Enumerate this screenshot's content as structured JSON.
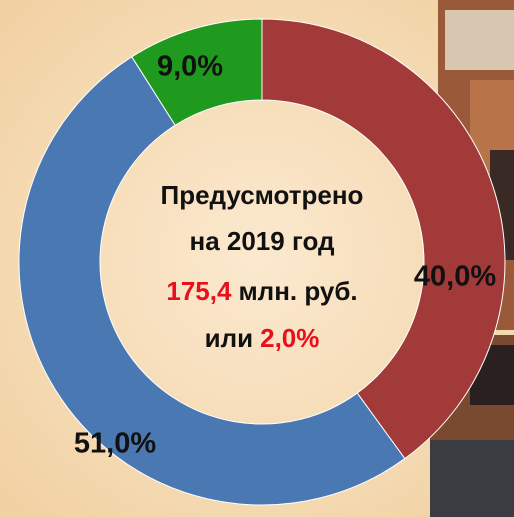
{
  "chart_data": {
    "type": "donut",
    "series": [
      {
        "values": [
          40.0,
          51.0,
          9.0
        ],
        "value_labels": [
          "40,0%",
          "51,0%",
          "9,0%"
        ],
        "colors": [
          "#a33a3a",
          "#4a78b2",
          "#1f9a1f"
        ]
      }
    ],
    "center_text": {
      "line1": "Предусмотрено",
      "line2": "на 2019 год",
      "amount": "175,4",
      "unit": "млн. руб.",
      "or": "или",
      "share": "2,0%"
    }
  }
}
